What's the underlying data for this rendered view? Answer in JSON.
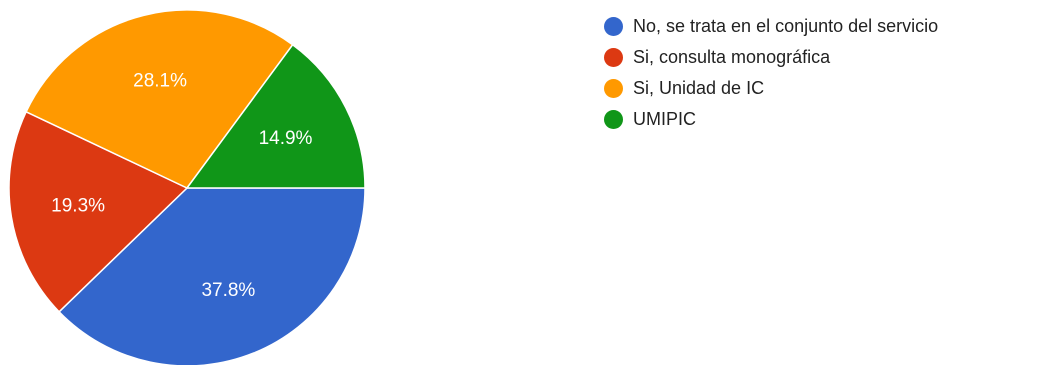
{
  "chart_data": {
    "type": "pie",
    "title": "",
    "slices": [
      {
        "label": "No, se trata en el conjunto del servicio",
        "value": 37.8,
        "value_label": "37.8%",
        "color": "#3366cc"
      },
      {
        "label": "Si, consulta monográfica",
        "value": 19.3,
        "value_label": "19.3%",
        "color": "#dc3912"
      },
      {
        "label": "Si, Unidad de IC",
        "value": 28.1,
        "value_label": "28.1%",
        "color": "#ff9900"
      },
      {
        "label": "UMIPIC",
        "value": 14.9,
        "value_label": "14.9%",
        "color": "#109618"
      }
    ],
    "start_direction": "east",
    "direction": "clockwise",
    "legend_position": "top-right"
  }
}
